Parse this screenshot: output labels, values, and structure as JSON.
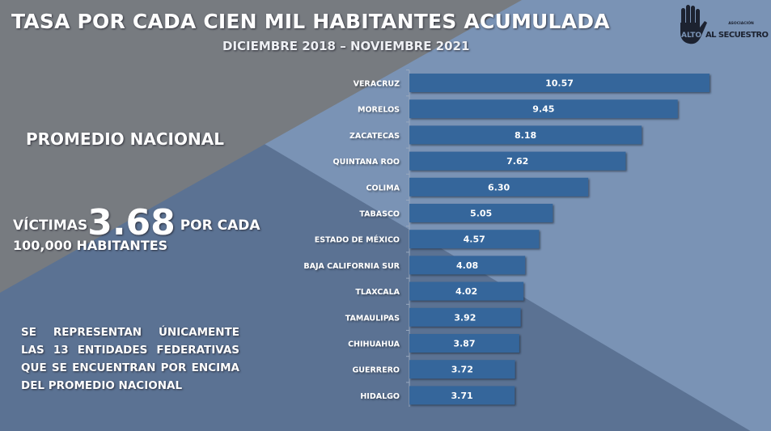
{
  "title": "TASA POR CADA CIEN MIL HABITANTES ACUMULADA",
  "subtitle": "DICIEMBRE 2018 – NOVIEMBRE 2021",
  "logo": {
    "top": "ASOCIACIÓN",
    "alto": "ALTO",
    "rest": "AL SECUESTRO"
  },
  "promedio": {
    "heading": "PROMEDIO NACIONAL",
    "prefix": "VÍCTIMAS",
    "value": "3.68",
    "suffix": "POR CADA",
    "line2": "100,000 HABITANTES"
  },
  "note": "SE REPRESENTAN ÚNICAMENTE LAS 13 ENTIDADES FEDERATIVAS QUE SE ENCUENTRAN POR ENCIMA DEL PROMEDIO NACIONAL",
  "colors": {
    "bar": "#34669b",
    "gray": "#777b80",
    "light_blue": "#7a93b5",
    "dark_blue": "#5b7293"
  },
  "chart_data": {
    "type": "bar",
    "orientation": "horizontal",
    "title": "TASA POR CADA CIEN MIL HABITANTES ACUMULADA",
    "categories": [
      "VERACRUZ",
      "MORELOS",
      "ZACATECAS",
      "QUINTANA ROO",
      "COLIMA",
      "TABASCO",
      "ESTADO DE MÉXICO",
      "BAJA CALIFORNIA SUR",
      "TLAXCALA",
      "TAMAULIPAS",
      "CHIHUAHUA",
      "GUERRERO",
      "HIDALGO"
    ],
    "values": [
      10.57,
      9.45,
      8.18,
      7.62,
      6.3,
      5.05,
      4.57,
      4.08,
      4.02,
      3.92,
      3.87,
      3.72,
      3.71
    ],
    "labels": [
      "10.57",
      "9.45",
      "8.18",
      "7.62",
      "6.30",
      "5.05",
      "4.57",
      "4.08",
      "4.02",
      "3.92",
      "3.87",
      "3.72",
      "3.71"
    ],
    "xlim": [
      0,
      10.57
    ],
    "grid": false,
    "legend": "none"
  }
}
